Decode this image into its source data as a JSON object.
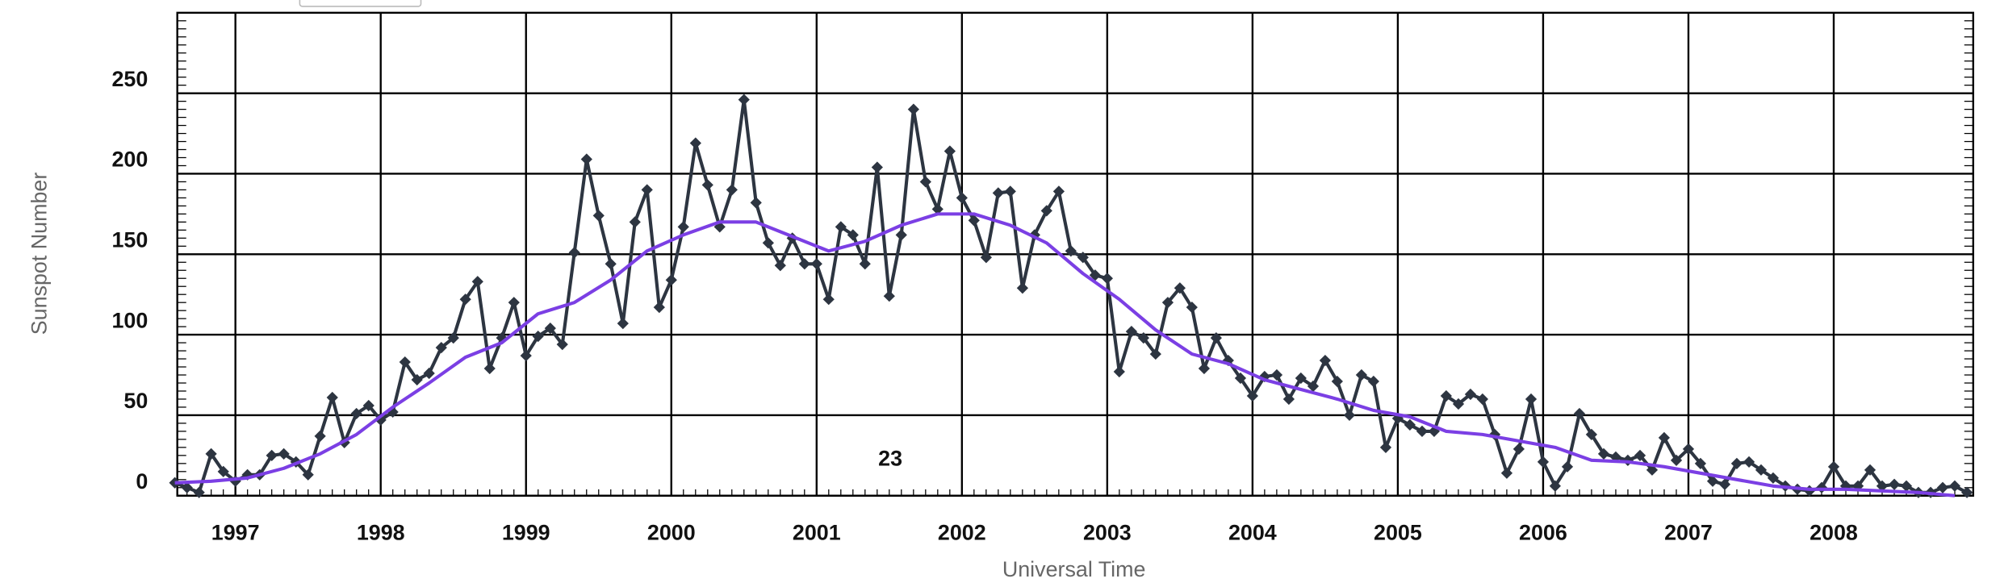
{
  "chart_data": {
    "type": "line",
    "ylabel": "Sunspot Number",
    "xlabel": "Universal Time",
    "annotation": "23",
    "xlim": [
      1996.6,
      2008.96
    ],
    "xticks": [
      1997,
      1998,
      1999,
      2000,
      2001,
      2002,
      2003,
      2004,
      2005,
      2006,
      2007,
      2008
    ],
    "ylim": [
      0,
      300
    ],
    "yticks": [
      0,
      50,
      100,
      150,
      200,
      250
    ],
    "grid": true,
    "series": [
      {
        "color": "#2d3541",
        "marker": "diamond",
        "x": [
          1996.583,
          1996.667,
          1996.75,
          1996.833,
          1996.917,
          1997,
          1997.083,
          1997.167,
          1997.25,
          1997.333,
          1997.417,
          1997.5,
          1997.583,
          1997.667,
          1997.75,
          1997.833,
          1997.917,
          1998,
          1998.083,
          1998.167,
          1998.25,
          1998.333,
          1998.417,
          1998.5,
          1998.583,
          1998.667,
          1998.75,
          1998.833,
          1998.917,
          1999,
          1999.083,
          1999.167,
          1999.25,
          1999.333,
          1999.417,
          1999.5,
          1999.583,
          1999.667,
          1999.75,
          1999.833,
          1999.917,
          2000,
          2000.083,
          2000.167,
          2000.25,
          2000.333,
          2000.417,
          2000.5,
          2000.583,
          2000.667,
          2000.75,
          2000.833,
          2000.917,
          2001,
          2001.083,
          2001.167,
          2001.25,
          2001.333,
          2001.417,
          2001.5,
          2001.583,
          2001.667,
          2001.75,
          2001.833,
          2001.917,
          2002,
          2002.083,
          2002.167,
          2002.25,
          2002.333,
          2002.417,
          2002.5,
          2002.583,
          2002.667,
          2002.75,
          2002.833,
          2002.917,
          2003,
          2003.083,
          2003.167,
          2003.25,
          2003.333,
          2003.417,
          2003.5,
          2003.583,
          2003.667,
          2003.75,
          2003.833,
          2003.917,
          2004,
          2004.083,
          2004.167,
          2004.25,
          2004.333,
          2004.417,
          2004.5,
          2004.583,
          2004.667,
          2004.75,
          2004.833,
          2004.917,
          2005,
          2005.083,
          2005.167,
          2005.25,
          2005.333,
          2005.417,
          2005.5,
          2005.583,
          2005.667,
          2005.75,
          2005.833,
          2005.917,
          2006,
          2006.083,
          2006.167,
          2006.25,
          2006.333,
          2006.417,
          2006.5,
          2006.583,
          2006.667,
          2006.75,
          2006.833,
          2006.917,
          2007,
          2007.083,
          2007.167,
          2007.25,
          2007.333,
          2007.417,
          2007.5,
          2007.583,
          2007.667,
          2007.75,
          2007.833,
          2007.917,
          2008,
          2008.083,
          2008.167,
          2008.25,
          2008.333,
          2008.417,
          2008.5,
          2008.583,
          2008.667,
          2008.75,
          2008.833,
          2008.917
        ],
        "values": [
          8,
          5,
          2,
          26,
          15,
          9,
          13,
          13,
          25,
          26,
          21,
          13,
          37,
          61,
          33,
          51,
          56,
          47,
          52,
          83,
          72,
          76,
          92,
          98,
          122,
          133,
          79,
          98,
          120,
          87,
          99,
          104,
          94,
          151,
          209,
          174,
          144,
          107,
          170,
          190,
          117,
          134,
          167,
          219,
          193,
          167,
          190,
          246,
          182,
          157,
          143,
          160,
          144,
          144,
          122,
          167,
          162,
          144,
          204,
          124,
          162,
          240,
          195,
          178,
          214,
          185,
          171,
          148,
          188,
          189,
          129,
          162,
          177,
          189,
          152,
          148,
          137,
          135,
          77,
          102,
          98,
          88,
          120,
          129,
          117,
          79,
          98,
          84,
          73,
          62,
          74,
          75,
          60,
          73,
          68,
          84,
          71,
          50,
          75,
          71,
          30,
          48,
          44,
          40,
          40,
          62,
          57,
          63,
          60,
          38,
          14,
          29,
          60,
          21,
          6,
          18,
          51,
          38,
          26,
          24,
          22,
          25,
          16,
          36,
          22,
          29,
          20,
          9,
          7,
          20,
          21,
          16,
          11,
          6,
          4,
          3,
          5,
          18,
          6,
          6,
          16,
          6,
          7,
          6,
          2,
          2,
          5,
          6,
          2
        ]
      },
      {
        "color": "#7b3fe4",
        "x": [
          1996.583,
          1996.833,
          1997.083,
          1997.333,
          1997.583,
          1997.833,
          1998.083,
          1998.333,
          1998.583,
          1998.833,
          1999.083,
          1999.333,
          1999.583,
          1999.833,
          2000.083,
          2000.333,
          2000.583,
          2000.833,
          2001.083,
          2001.333,
          2001.583,
          2001.833,
          2002.083,
          2002.333,
          2002.583,
          2002.833,
          2003.083,
          2003.333,
          2003.583,
          2003.833,
          2004.083,
          2004.333,
          2004.583,
          2004.833,
          2005.083,
          2005.333,
          2005.583,
          2005.833,
          2006.083,
          2006.333,
          2006.583,
          2006.833,
          2007.083,
          2007.333,
          2007.583,
          2007.833,
          2008.083,
          2008.333,
          2008.583,
          2008.833
        ],
        "values": [
          8,
          9,
          11,
          17,
          26,
          38,
          55,
          70,
          86,
          95,
          113,
          120,
          134,
          152,
          162,
          170,
          170,
          161,
          152,
          158,
          168,
          175,
          175,
          168,
          157,
          138,
          122,
          103,
          88,
          82,
          72,
          66,
          60,
          53,
          49,
          40,
          38,
          34,
          30,
          22,
          21,
          18,
          14,
          10,
          6,
          4,
          4,
          3,
          2,
          0
        ]
      }
    ]
  }
}
